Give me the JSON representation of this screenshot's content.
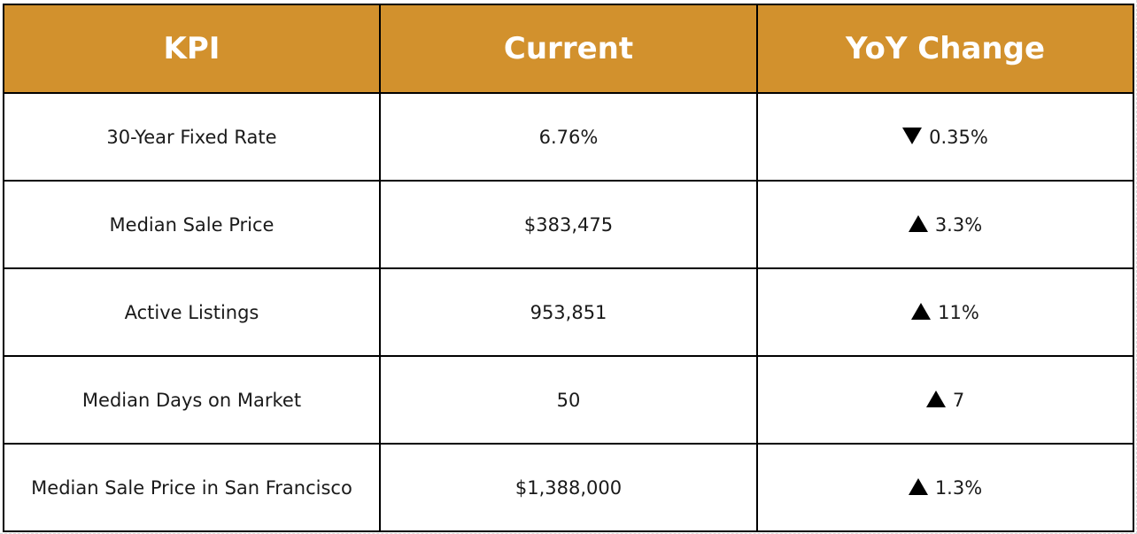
{
  "table": {
    "headers": [
      "KPI",
      "Current",
      "YoY Change"
    ],
    "rows": [
      {
        "kpi": "30-Year Fixed Rate",
        "current": "6.76%",
        "direction": "down",
        "direction_icon": "down-triangle-icon",
        "change": "0.35%"
      },
      {
        "kpi": "Median Sale Price",
        "current": "$383,475",
        "direction": "up",
        "direction_icon": "up-triangle-icon",
        "change": "3.3%"
      },
      {
        "kpi": "Active Listings",
        "current": "953,851",
        "direction": "up",
        "direction_icon": "up-triangle-icon",
        "change": "11%"
      },
      {
        "kpi": "Median Days on Market",
        "current": "50",
        "direction": "up",
        "direction_icon": "up-triangle-icon",
        "change": "7"
      },
      {
        "kpi": "Median Sale Price in San Francisco",
        "current": "$1,388,000",
        "direction": "up",
        "direction_icon": "up-triangle-icon",
        "change": "1.3%"
      }
    ]
  },
  "colors": {
    "header_bg": "#d2912d",
    "header_text": "#ffffff",
    "cell_text": "#1a1a1a",
    "border": "#000000"
  }
}
